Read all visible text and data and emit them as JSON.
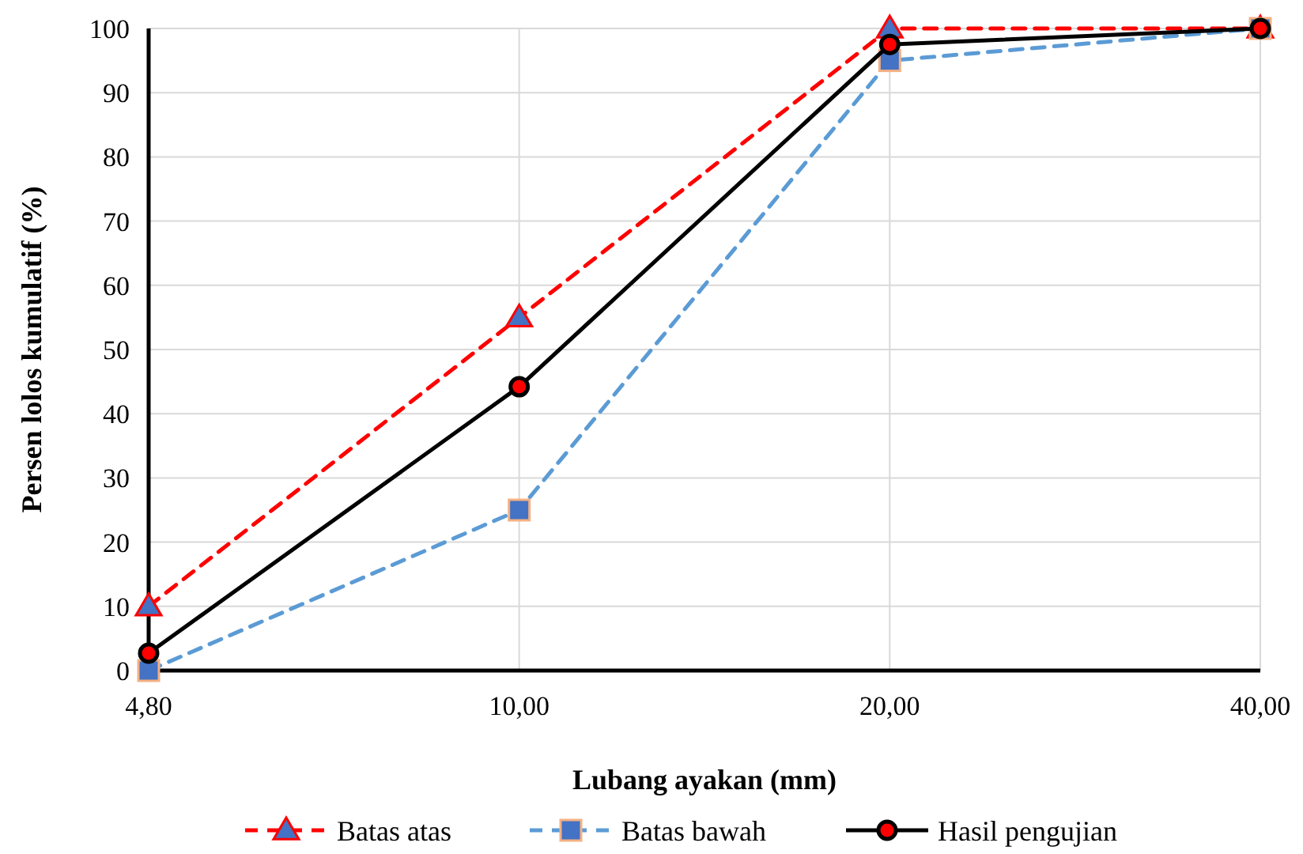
{
  "chart_data": {
    "type": "line",
    "xlabel": "Lubang ayakan (mm)",
    "ylabel": "Persen lolos kumulatif (%)",
    "categories": [
      "4,80",
      "10,00",
      "20,00",
      "40,00"
    ],
    "series": [
      {
        "name": "Batas atas",
        "color": "#ff0000",
        "values": [
          10,
          55,
          100,
          100
        ],
        "marker": "triangle",
        "line_style": "dashed"
      },
      {
        "name": "Batas bawah",
        "color": "#5b9bd5",
        "values": [
          0,
          25,
          95,
          100
        ],
        "marker": "square",
        "line_style": "dashed"
      },
      {
        "name": "Hasil pengujian",
        "color": "#000000",
        "values": [
          2.7,
          44.2,
          97.5,
          100
        ],
        "marker": "circle",
        "line_style": "solid"
      }
    ],
    "ylim": [
      0,
      100
    ],
    "yticks": [
      0,
      10,
      20,
      30,
      40,
      50,
      60,
      70,
      80,
      90,
      100
    ],
    "grid": true,
    "legend": "bottom"
  }
}
